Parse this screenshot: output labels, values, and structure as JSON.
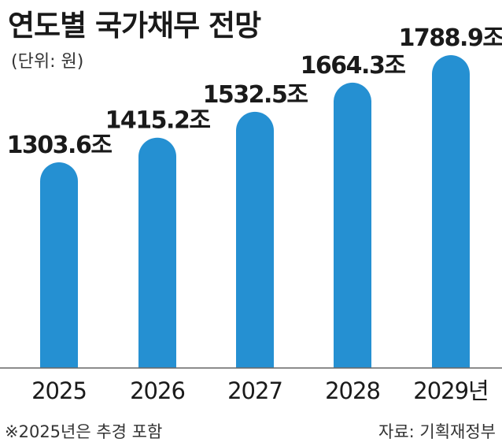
{
  "title": "연도별 국가채무 전망",
  "unit": "(단위: 원)",
  "footnote": "※2025년은 추경 포함",
  "source": "자료: 기획재정부",
  "colors": {
    "bar": "#2590d2",
    "axis": "#666666",
    "text": "#1a1a1a"
  },
  "chart_data": {
    "type": "bar",
    "categories": [
      "2025",
      "2026",
      "2027",
      "2028",
      "2029년"
    ],
    "values": [
      1303.6,
      1415.2,
      1532.5,
      1664.3,
      1788.9
    ],
    "data_labels": [
      "1303.6조",
      "1415.2조",
      "1532.5조",
      "1664.3조",
      "1788.9조"
    ],
    "title": "연도별 국가채무 전망",
    "xlabel": "",
    "ylabel": "",
    "grid": false
  }
}
